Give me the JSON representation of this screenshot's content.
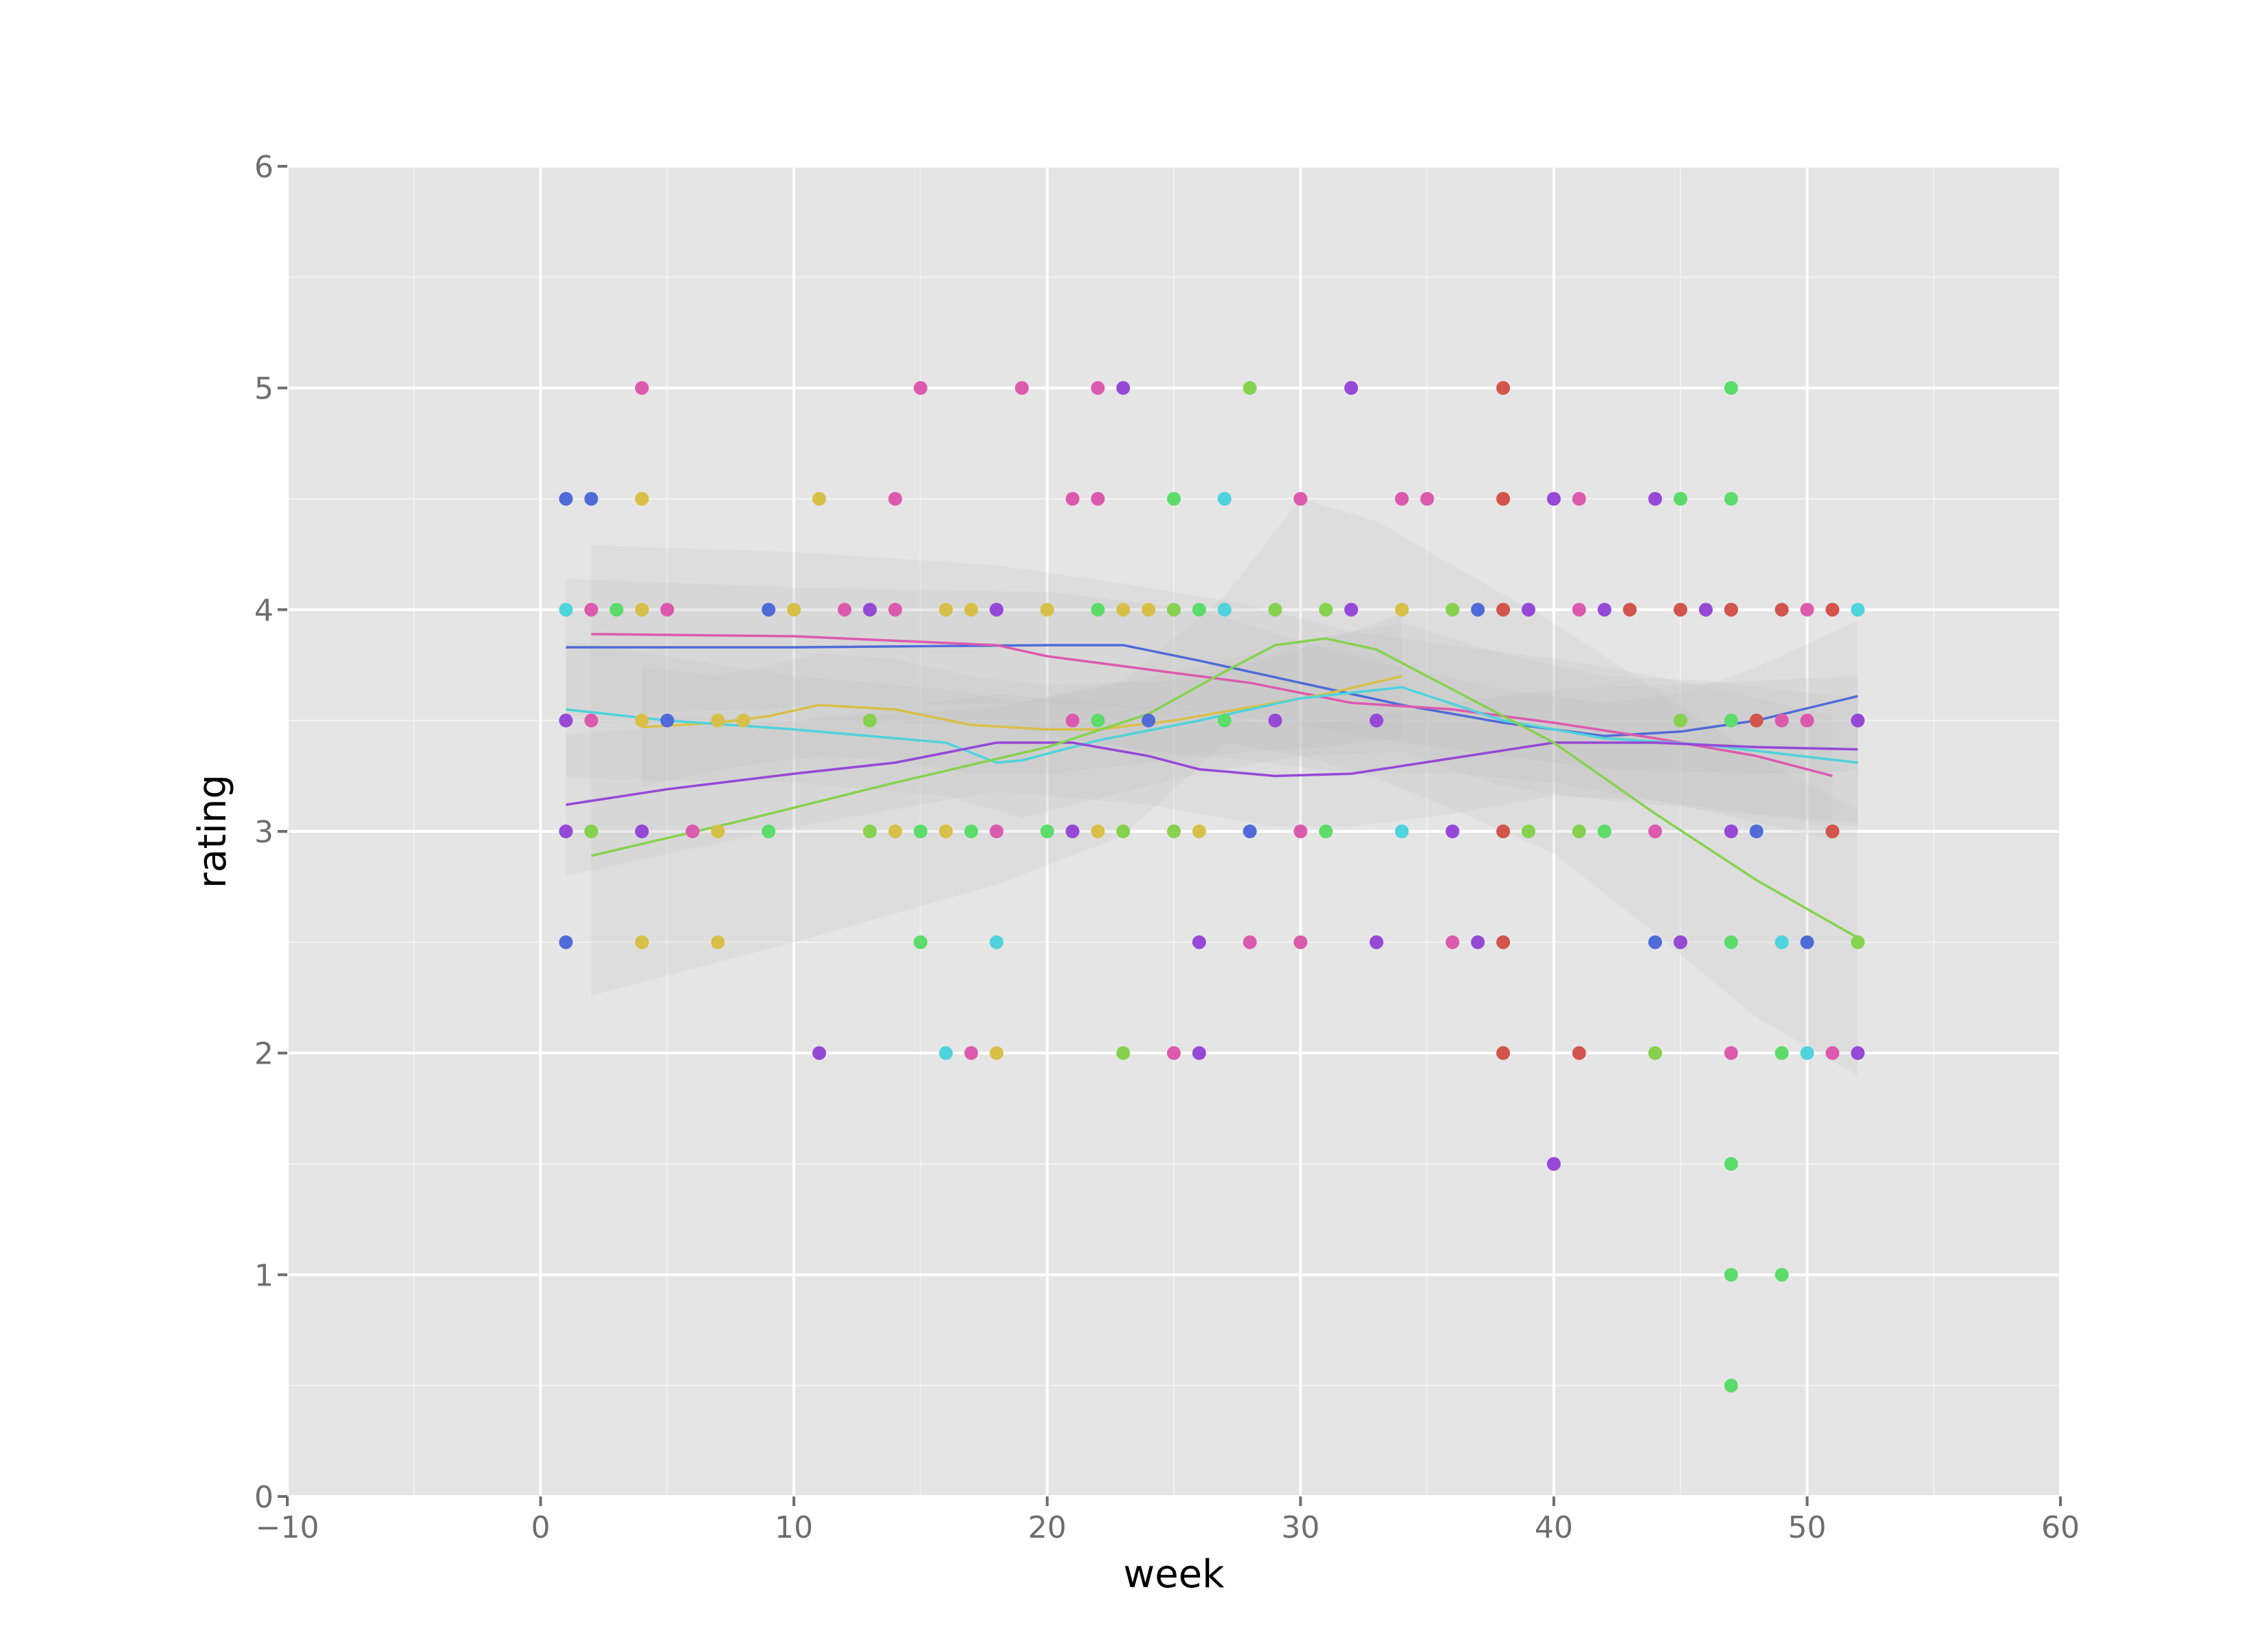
{
  "chart_data": {
    "type": "scatter",
    "title": "",
    "xlabel": "week",
    "ylabel": "rating",
    "xlim": [
      -10,
      60
    ],
    "ylim": [
      0,
      6
    ],
    "x_ticks": [
      -10,
      0,
      10,
      20,
      30,
      40,
      50,
      60
    ],
    "x_tick_labels": [
      "−10",
      "0",
      "10",
      "20",
      "30",
      "40",
      "50",
      "60"
    ],
    "y_ticks": [
      0,
      1,
      2,
      3,
      4,
      5,
      6
    ],
    "y_tick_labels": [
      "0",
      "1",
      "2",
      "3",
      "4",
      "5",
      "6"
    ],
    "grid": true,
    "legend": "none",
    "panel_color": "#e5e5e5",
    "grid_color": "#ffffff",
    "series": [
      {
        "color": "#4f6bd8",
        "points": [
          [
            1,
            4.5
          ],
          [
            2,
            4.5
          ],
          [
            1,
            2.5
          ],
          [
            5,
            3.5
          ],
          [
            9,
            4
          ],
          [
            24,
            3.5
          ],
          [
            28,
            3
          ],
          [
            37,
            4
          ],
          [
            44,
            2.5
          ],
          [
            48,
            3
          ],
          [
            50,
            2.5
          ]
        ],
        "trend": [
          [
            1,
            3.83
          ],
          [
            10,
            3.83
          ],
          [
            20,
            3.84
          ],
          [
            23,
            3.84
          ],
          [
            26,
            3.77
          ],
          [
            30,
            3.67
          ],
          [
            34,
            3.57
          ],
          [
            38,
            3.49
          ],
          [
            42,
            3.43
          ],
          [
            45,
            3.45
          ],
          [
            48,
            3.5
          ],
          [
            52,
            3.61
          ]
        ],
        "band": [
          [
            1,
            4.14,
            3.52
          ],
          [
            10,
            4.1,
            3.56
          ],
          [
            20,
            4.08,
            3.58
          ],
          [
            26,
            4.0,
            3.54
          ],
          [
            30,
            3.86,
            3.48
          ],
          [
            34,
            3.74,
            3.4
          ],
          [
            38,
            3.64,
            3.34
          ],
          [
            42,
            3.58,
            3.28
          ],
          [
            45,
            3.62,
            3.27
          ],
          [
            48,
            3.74,
            3.26
          ],
          [
            52,
            3.95,
            3.27
          ]
        ]
      },
      {
        "color": "#dc5aae",
        "points": [
          [
            2,
            4
          ],
          [
            2,
            3.5
          ],
          [
            4,
            5
          ],
          [
            5,
            4
          ],
          [
            6,
            3
          ],
          [
            12,
            4
          ],
          [
            14,
            4.5
          ],
          [
            14,
            4
          ],
          [
            15,
            5
          ],
          [
            18,
            3
          ],
          [
            19,
            5
          ],
          [
            21,
            4.5
          ],
          [
            22,
            5
          ],
          [
            22,
            4.5
          ],
          [
            25,
            2
          ],
          [
            28,
            2.5
          ],
          [
            30,
            4.5
          ],
          [
            30,
            3
          ],
          [
            30,
            2.5
          ],
          [
            34,
            4.5
          ],
          [
            35,
            4.5
          ],
          [
            36,
            2.5
          ],
          [
            41,
            4
          ],
          [
            41,
            4.5
          ],
          [
            44,
            3
          ],
          [
            47,
            4
          ],
          [
            47,
            2
          ],
          [
            49,
            3.5
          ],
          [
            50,
            4
          ],
          [
            50,
            3.5
          ],
          [
            51,
            2
          ],
          [
            17,
            2
          ],
          [
            21,
            3.5
          ]
        ],
        "trend": [
          [
            2,
            3.89
          ],
          [
            10,
            3.88
          ],
          [
            18,
            3.84
          ],
          [
            20,
            3.79
          ],
          [
            24,
            3.73
          ],
          [
            28,
            3.67
          ],
          [
            32,
            3.58
          ],
          [
            36,
            3.55
          ],
          [
            40,
            3.49
          ],
          [
            44,
            3.42
          ],
          [
            48,
            3.34
          ],
          [
            51,
            3.25
          ]
        ],
        "band": [
          [
            2,
            4.29,
            3.49
          ],
          [
            10,
            4.26,
            3.5
          ],
          [
            18,
            4.2,
            3.48
          ],
          [
            24,
            4.1,
            3.36
          ],
          [
            28,
            4.02,
            3.32
          ],
          [
            32,
            3.9,
            3.26
          ],
          [
            36,
            3.84,
            3.26
          ],
          [
            40,
            3.78,
            3.22
          ],
          [
            44,
            3.7,
            3.14
          ],
          [
            48,
            3.6,
            3.04
          ],
          [
            51,
            3.52,
            2.96
          ]
        ]
      },
      {
        "color": "#d8c048",
        "points": [
          [
            4,
            4.5
          ],
          [
            4,
            4
          ],
          [
            4,
            3.5
          ],
          [
            4,
            2.5
          ],
          [
            7,
            3.5
          ],
          [
            7,
            3
          ],
          [
            7,
            2.5
          ],
          [
            8,
            3.5
          ],
          [
            10,
            4
          ],
          [
            11,
            4.5
          ],
          [
            14,
            3
          ],
          [
            16,
            4
          ],
          [
            16,
            3
          ],
          [
            17,
            4
          ],
          [
            18,
            2
          ],
          [
            20,
            4
          ],
          [
            22,
            3
          ],
          [
            23,
            4
          ],
          [
            24,
            4
          ],
          [
            26,
            3
          ],
          [
            34,
            4
          ]
        ],
        "trend": [
          [
            4,
            3.47
          ],
          [
            7,
            3.49
          ],
          [
            9,
            3.52
          ],
          [
            11,
            3.57
          ],
          [
            14,
            3.55
          ],
          [
            17,
            3.48
          ],
          [
            20,
            3.46
          ],
          [
            22,
            3.46
          ],
          [
            25,
            3.5
          ],
          [
            28,
            3.56
          ],
          [
            31,
            3.62
          ],
          [
            34,
            3.7
          ]
        ],
        "band": [
          [
            4,
            3.74,
            3.2
          ],
          [
            7,
            3.7,
            3.28
          ],
          [
            11,
            3.8,
            3.34
          ],
          [
            14,
            3.78,
            3.32
          ],
          [
            17,
            3.7,
            3.26
          ],
          [
            20,
            3.66,
            3.26
          ],
          [
            25,
            3.68,
            3.32
          ],
          [
            28,
            3.76,
            3.36
          ],
          [
            31,
            3.86,
            3.38
          ],
          [
            34,
            3.98,
            3.42
          ]
        ]
      },
      {
        "color": "#5cdc6a",
        "points": [
          [
            3,
            4
          ],
          [
            9,
            3
          ],
          [
            15,
            3
          ],
          [
            15,
            2.5
          ],
          [
            17,
            3
          ],
          [
            20,
            3
          ],
          [
            22,
            4
          ],
          [
            22,
            3.5
          ],
          [
            25,
            4.5
          ],
          [
            26,
            4
          ],
          [
            27,
            3.5
          ],
          [
            31,
            3
          ],
          [
            42,
            3
          ],
          [
            45,
            4.5
          ],
          [
            47,
            5
          ],
          [
            47,
            4.5
          ],
          [
            47,
            3.5
          ],
          [
            47,
            2.5
          ],
          [
            47,
            1.5
          ],
          [
            47,
            1
          ],
          [
            47,
            0.5
          ],
          [
            49,
            2
          ],
          [
            49,
            1
          ]
        ],
        "trend": [],
        "band": []
      },
      {
        "color": "#4fd3dc",
        "points": [
          [
            1,
            4
          ],
          [
            16,
            2
          ],
          [
            18,
            2.5
          ],
          [
            27,
            4.5
          ],
          [
            27,
            4
          ],
          [
            34,
            3
          ],
          [
            49,
            2.5
          ],
          [
            50,
            2
          ],
          [
            52,
            4
          ]
        ],
        "trend": [
          [
            1,
            3.55
          ],
          [
            5,
            3.5
          ],
          [
            10,
            3.46
          ],
          [
            16,
            3.4
          ],
          [
            18,
            3.31
          ],
          [
            19,
            3.32
          ],
          [
            22,
            3.41
          ],
          [
            26,
            3.5
          ],
          [
            30,
            3.6
          ],
          [
            34,
            3.65
          ],
          [
            38,
            3.5
          ],
          [
            42,
            3.42
          ],
          [
            46,
            3.39
          ],
          [
            52,
            3.31
          ]
        ],
        "band": [
          [
            1,
            3.86,
            3.24
          ],
          [
            10,
            3.7,
            3.22
          ],
          [
            16,
            3.64,
            3.16
          ],
          [
            19,
            3.58,
            3.06
          ],
          [
            26,
            3.74,
            3.26
          ],
          [
            30,
            3.86,
            3.34
          ],
          [
            34,
            3.94,
            3.36
          ],
          [
            38,
            3.8,
            3.2
          ],
          [
            42,
            3.7,
            3.14
          ],
          [
            46,
            3.68,
            3.1
          ],
          [
            52,
            3.6,
            3.02
          ]
        ]
      },
      {
        "color": "#9648d6",
        "points": [
          [
            1,
            3.5
          ],
          [
            1,
            3
          ],
          [
            4,
            3
          ],
          [
            11,
            2
          ],
          [
            13,
            4
          ],
          [
            18,
            4
          ],
          [
            21,
            3
          ],
          [
            23,
            5
          ],
          [
            26,
            2.5
          ],
          [
            26,
            2
          ],
          [
            29,
            3.5
          ],
          [
            32,
            5
          ],
          [
            32,
            4
          ],
          [
            33,
            3.5
          ],
          [
            33,
            2.5
          ],
          [
            36,
            3
          ],
          [
            37,
            2.5
          ],
          [
            39,
            4
          ],
          [
            40,
            4.5
          ],
          [
            40,
            1.5
          ],
          [
            42,
            4
          ],
          [
            44,
            4.5
          ],
          [
            45,
            2.5
          ],
          [
            46,
            4
          ],
          [
            47,
            3
          ],
          [
            52,
            3.5
          ],
          [
            52,
            2
          ]
        ],
        "trend": [
          [
            1,
            3.12
          ],
          [
            5,
            3.19
          ],
          [
            10,
            3.26
          ],
          [
            14,
            3.31
          ],
          [
            18,
            3.4
          ],
          [
            21,
            3.4
          ],
          [
            24,
            3.34
          ],
          [
            26,
            3.28
          ],
          [
            29,
            3.25
          ],
          [
            32,
            3.26
          ],
          [
            36,
            3.33
          ],
          [
            40,
            3.4
          ],
          [
            44,
            3.4
          ],
          [
            48,
            3.38
          ],
          [
            52,
            3.37
          ]
        ],
        "band": [
          [
            1,
            3.44,
            2.8
          ],
          [
            10,
            3.5,
            3.02
          ],
          [
            18,
            3.62,
            3.18
          ],
          [
            24,
            3.56,
            3.12
          ],
          [
            29,
            3.48,
            3.02
          ],
          [
            32,
            3.5,
            3.02
          ],
          [
            36,
            3.58,
            3.08
          ],
          [
            40,
            3.64,
            3.16
          ],
          [
            44,
            3.66,
            3.14
          ],
          [
            48,
            3.68,
            3.08
          ],
          [
            52,
            3.7,
            3.04
          ]
        ]
      },
      {
        "color": "#d2544c",
        "points": [
          [
            38,
            5
          ],
          [
            38,
            4.5
          ],
          [
            38,
            4
          ],
          [
            38,
            3
          ],
          [
            38,
            2.5
          ],
          [
            38,
            2
          ],
          [
            41,
            2
          ],
          [
            43,
            4
          ],
          [
            45,
            4
          ],
          [
            47,
            4
          ],
          [
            48,
            3.5
          ],
          [
            49,
            4
          ],
          [
            51,
            4
          ],
          [
            51,
            3
          ]
        ],
        "trend": [],
        "band": []
      },
      {
        "color": "#86d24e",
        "points": [
          [
            2,
            3
          ],
          [
            13,
            3.5
          ],
          [
            13,
            3
          ],
          [
            23,
            3
          ],
          [
            23,
            2
          ],
          [
            25,
            3
          ],
          [
            25,
            4
          ],
          [
            28,
            5
          ],
          [
            29,
            4
          ],
          [
            31,
            4
          ],
          [
            36,
            4
          ],
          [
            39,
            3
          ],
          [
            41,
            3
          ],
          [
            44,
            2
          ],
          [
            45,
            3.5
          ],
          [
            52,
            2.5
          ]
        ],
        "trend": [
          [
            2,
            2.89
          ],
          [
            8,
            3.05
          ],
          [
            14,
            3.22
          ],
          [
            20,
            3.38
          ],
          [
            24,
            3.53
          ],
          [
            27,
            3.72
          ],
          [
            29,
            3.84
          ],
          [
            31,
            3.87
          ],
          [
            33,
            3.82
          ],
          [
            36,
            3.64
          ],
          [
            40,
            3.4
          ],
          [
            44,
            3.08
          ],
          [
            48,
            2.78
          ],
          [
            52,
            2.52
          ]
        ],
        "band": [
          [
            2,
            3.52,
            2.26
          ],
          [
            10,
            3.5,
            2.5
          ],
          [
            18,
            3.56,
            2.76
          ],
          [
            23,
            3.68,
            2.98
          ],
          [
            27,
            4.06,
            3.4
          ],
          [
            30,
            4.5,
            3.34
          ],
          [
            33,
            4.4,
            3.24
          ],
          [
            36,
            4.2,
            3.1
          ],
          [
            40,
            3.94,
            2.9
          ],
          [
            44,
            3.64,
            2.54
          ],
          [
            48,
            3.34,
            2.16
          ],
          [
            52,
            3.1,
            1.9
          ]
        ]
      }
    ]
  }
}
